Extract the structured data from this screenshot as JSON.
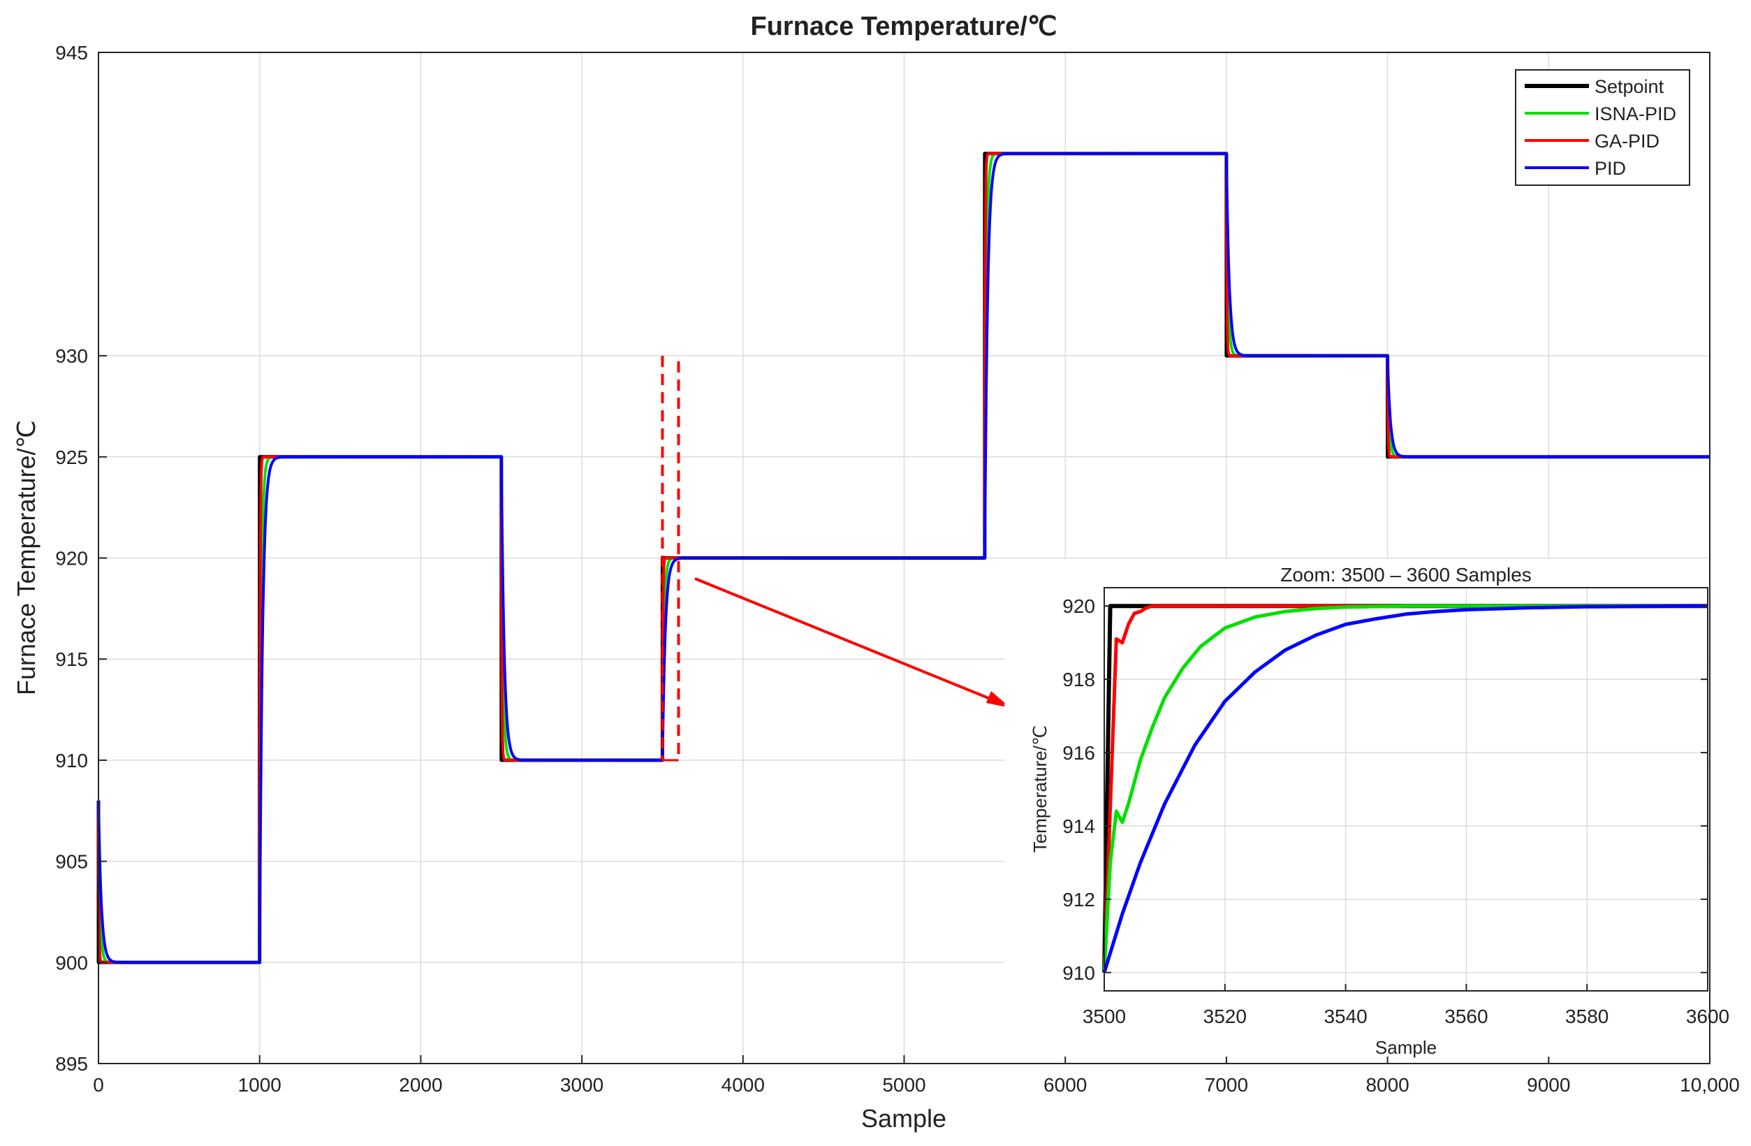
{
  "chart_data": [
    {
      "type": "line",
      "title": "Furnace Temperature/℃",
      "xlabel": "Sample",
      "ylabel": "Furnace Temperature/℃",
      "xlim": [
        0,
        10000
      ],
      "ylim": [
        895,
        945
      ],
      "xticks": [
        0,
        1000,
        2000,
        3000,
        4000,
        5000,
        6000,
        7000,
        8000,
        9000,
        10000
      ],
      "xtick_labels": [
        "0",
        "1000",
        "2000",
        "3000",
        "4000",
        "5000",
        "6000",
        "7000",
        "8000",
        "9000",
        "10,000"
      ],
      "yticks": [
        895,
        900,
        905,
        910,
        915,
        920,
        925,
        930,
        945
      ],
      "ytick_labels": [
        "895",
        "900",
        "905",
        "910",
        "915",
        "920",
        "925",
        "930",
        "945"
      ],
      "grid": true,
      "legend_position": "top-right",
      "step_changes": [
        {
          "x": 0,
          "y": 900
        },
        {
          "x": 1000,
          "y": 925
        },
        {
          "x": 2500,
          "y": 910
        },
        {
          "x": 3500,
          "y": 920
        },
        {
          "x": 5500,
          "y": 940
        },
        {
          "x": 7000,
          "y": 930
        },
        {
          "x": 8000,
          "y": 925
        }
      ],
      "initial_value": 908,
      "series": [
        {
          "name": "Setpoint",
          "color": "#000000",
          "settle_samples": 0
        },
        {
          "name": "ISNA-PID",
          "color": "#00e000",
          "settle_samples": 40
        },
        {
          "name": "GA-PID",
          "color": "#ff0000",
          "settle_samples": 12
        },
        {
          "name": "PID",
          "color": "#0000ff",
          "settle_samples": 70
        }
      ],
      "highlight_window": {
        "x": [
          3500,
          3600
        ],
        "y": [
          910,
          930
        ],
        "color": "#ff0000"
      }
    },
    {
      "type": "line",
      "title": "Zoom: 3500 – 3600 Samples",
      "xlabel": "Sample",
      "ylabel": "Temperature/℃",
      "xlim": [
        3500,
        3600
      ],
      "ylim": [
        909.5,
        920.5
      ],
      "xticks": [
        3500,
        3520,
        3540,
        3560,
        3580,
        3600
      ],
      "xtick_labels": [
        "3500",
        "3520",
        "3540",
        "3560",
        "3580",
        "3600"
      ],
      "yticks": [
        910,
        912,
        914,
        916,
        918,
        920
      ],
      "ytick_labels": [
        "910",
        "912",
        "914",
        "916",
        "918",
        "920"
      ],
      "grid": true,
      "series": [
        {
          "name": "Setpoint",
          "color": "#000000",
          "x": [
            3500,
            3501,
            3600
          ],
          "y": [
            910,
            920,
            920
          ]
        },
        {
          "name": "GA-PID",
          "color": "#ff0000",
          "x": [
            3500,
            3501,
            3502,
            3503,
            3504,
            3505,
            3506,
            3507,
            3508,
            3509,
            3512,
            3600
          ],
          "y": [
            910,
            914.5,
            919.1,
            919,
            919.5,
            919.8,
            919.85,
            919.95,
            920,
            920,
            920,
            920
          ]
        },
        {
          "name": "ISNA-PID",
          "color": "#00e000",
          "x": [
            3500,
            3501,
            3502,
            3503,
            3504,
            3506,
            3508,
            3510,
            3513,
            3516,
            3520,
            3525,
            3530,
            3535,
            3540,
            3550,
            3560,
            3600
          ],
          "y": [
            910,
            913,
            914.4,
            914.1,
            914.6,
            915.8,
            916.7,
            917.5,
            918.3,
            918.9,
            919.4,
            919.7,
            919.85,
            919.93,
            919.97,
            920,
            920,
            920
          ]
        },
        {
          "name": "PID",
          "color": "#0000ff",
          "x": [
            3500,
            3503,
            3506,
            3510,
            3515,
            3520,
            3525,
            3530,
            3535,
            3540,
            3545,
            3550,
            3555,
            3560,
            3570,
            3580,
            3590,
            3600
          ],
          "y": [
            910,
            911.6,
            913.0,
            914.6,
            916.2,
            917.4,
            918.2,
            918.8,
            919.2,
            919.5,
            919.65,
            919.78,
            919.85,
            919.9,
            919.95,
            919.98,
            919.99,
            920
          ]
        }
      ]
    }
  ]
}
